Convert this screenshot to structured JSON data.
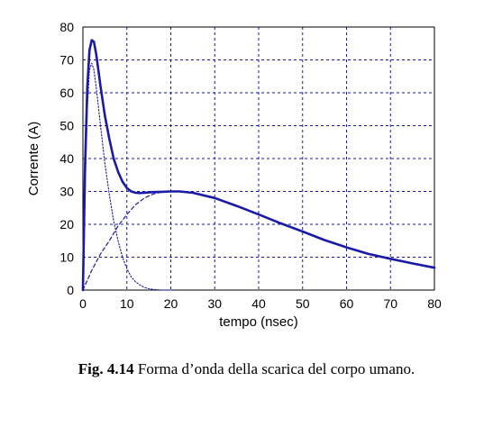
{
  "chart_data": {
    "type": "line",
    "xlabel": "tempo (nsec)",
    "ylabel": "Corrente (A)",
    "xlim": [
      0,
      80
    ],
    "ylim": [
      0,
      80
    ],
    "xticks": [
      0,
      10,
      20,
      30,
      40,
      50,
      60,
      70,
      80
    ],
    "yticks": [
      0,
      10,
      20,
      30,
      40,
      50,
      60,
      70,
      80
    ],
    "grid": true,
    "series": [
      {
        "style": "solid",
        "color": "#1a1aa6",
        "x": [
          0,
          0.5,
          1,
          1.5,
          2,
          2.5,
          3,
          3.5,
          4,
          5,
          6,
          7,
          8,
          9,
          10,
          11,
          12,
          13,
          14,
          15,
          16,
          18,
          20,
          22,
          25,
          30,
          35,
          40,
          45,
          50,
          55,
          60,
          65,
          70,
          75,
          80
        ],
        "y": [
          0,
          38,
          62,
          73,
          76,
          75.5,
          72,
          67,
          62,
          53,
          46,
          40,
          36,
          33,
          31,
          30,
          29.6,
          29.5,
          29.6,
          29.7,
          29.8,
          29.9,
          30,
          30,
          29.6,
          28,
          25.6,
          23,
          20.3,
          17.8,
          15.2,
          13,
          11,
          9.5,
          8.1,
          6.8
        ]
      },
      {
        "style": "dotted",
        "color": "#1a1aa6",
        "x": [
          0,
          0.5,
          1,
          1.5,
          2,
          2.5,
          3,
          3.5,
          4,
          5,
          6,
          7,
          8,
          9,
          10,
          11,
          12,
          13,
          14,
          15,
          16,
          18,
          20
        ],
        "y": [
          0,
          30,
          55,
          67,
          69,
          67,
          62,
          56,
          50,
          38.5,
          29,
          21,
          15,
          10,
          6.5,
          4,
          2.5,
          1.5,
          0.8,
          0.4,
          0.2,
          0,
          0
        ]
      },
      {
        "style": "dashed",
        "color": "#1a1aa6",
        "x": [
          0,
          1,
          2,
          4,
          6,
          8,
          10,
          12,
          14,
          16,
          18,
          20,
          22
        ],
        "y": [
          0,
          3,
          6,
          11,
          15,
          19.5,
          23,
          26,
          28,
          29.2,
          29.8,
          30,
          30
        ]
      }
    ]
  },
  "caption": {
    "label": "Fig. 4.14",
    "text": " Forma d’onda della scarica del corpo umano."
  }
}
